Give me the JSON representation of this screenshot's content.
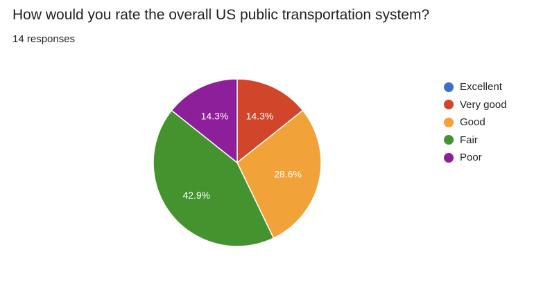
{
  "question": {
    "title": "How would you rate the overall US public transportation system?",
    "responses": "14 responses"
  },
  "chart_data": {
    "type": "pie",
    "categories": [
      "Excellent",
      "Very good",
      "Good",
      "Fair",
      "Poor"
    ],
    "values": [
      0,
      14.3,
      28.6,
      42.9,
      14.3
    ],
    "labels": [
      "",
      "14.3%",
      "28.6%",
      "42.9%",
      "14.3%"
    ],
    "colors": [
      "#3f6fce",
      "#d1462a",
      "#f1a238",
      "#45932f",
      "#8e1f9a"
    ],
    "legend": "right"
  }
}
